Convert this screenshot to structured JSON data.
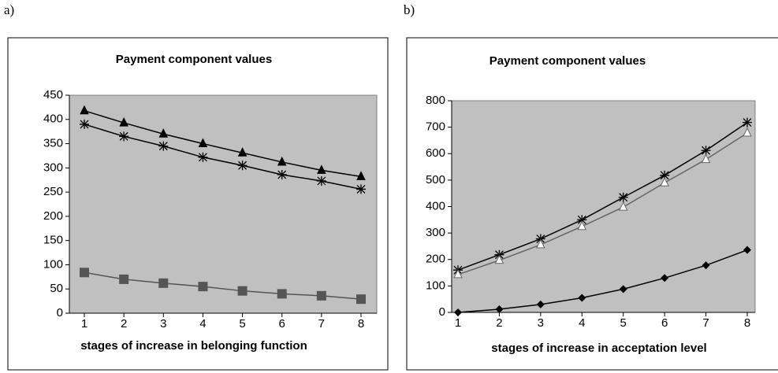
{
  "chart_data": [
    {
      "type": "line",
      "panel_label": "a)",
      "title": "Payment component values",
      "xlabel": "stages of increase in belonging function",
      "categories": [
        "1",
        "2",
        "3",
        "4",
        "5",
        "6",
        "7",
        "8"
      ],
      "ylim": [
        0,
        450
      ],
      "yticks": [
        0,
        50,
        100,
        150,
        200,
        250,
        300,
        350,
        400,
        450
      ],
      "grid": false,
      "series": [
        {
          "color": "#000000",
          "marker": "triangle",
          "values": [
            418,
            393,
            370,
            350,
            331,
            312,
            295,
            282
          ]
        },
        {
          "color": "#000000",
          "marker": "star",
          "values": [
            390,
            365,
            345,
            322,
            305,
            286,
            273,
            256
          ]
        },
        {
          "color": "#555555",
          "marker": "square",
          "values": [
            84,
            70,
            62,
            55,
            46,
            40,
            36,
            29
          ]
        }
      ]
    },
    {
      "type": "line",
      "panel_label": "b)",
      "title": "Payment component values",
      "xlabel": "stages of increase in acceptation level",
      "categories": [
        "1",
        "2",
        "3",
        "4",
        "5",
        "6",
        "7",
        "8"
      ],
      "ylim": [
        0,
        800
      ],
      "yticks": [
        0,
        100,
        200,
        300,
        400,
        500,
        600,
        700,
        800
      ],
      "grid": false,
      "series": [
        {
          "color": "#000000",
          "marker": "star",
          "values": [
            160,
            218,
            278,
            350,
            435,
            518,
            612,
            718
          ]
        },
        {
          "color": "#666666",
          "marker": "triangle-open",
          "values": [
            143,
            197,
            256,
            325,
            398,
            490,
            578,
            678
          ]
        },
        {
          "color": "#000000",
          "marker": "diamond",
          "values": [
            0,
            12,
            30,
            55,
            88,
            130,
            178,
            236
          ]
        }
      ]
    }
  ]
}
